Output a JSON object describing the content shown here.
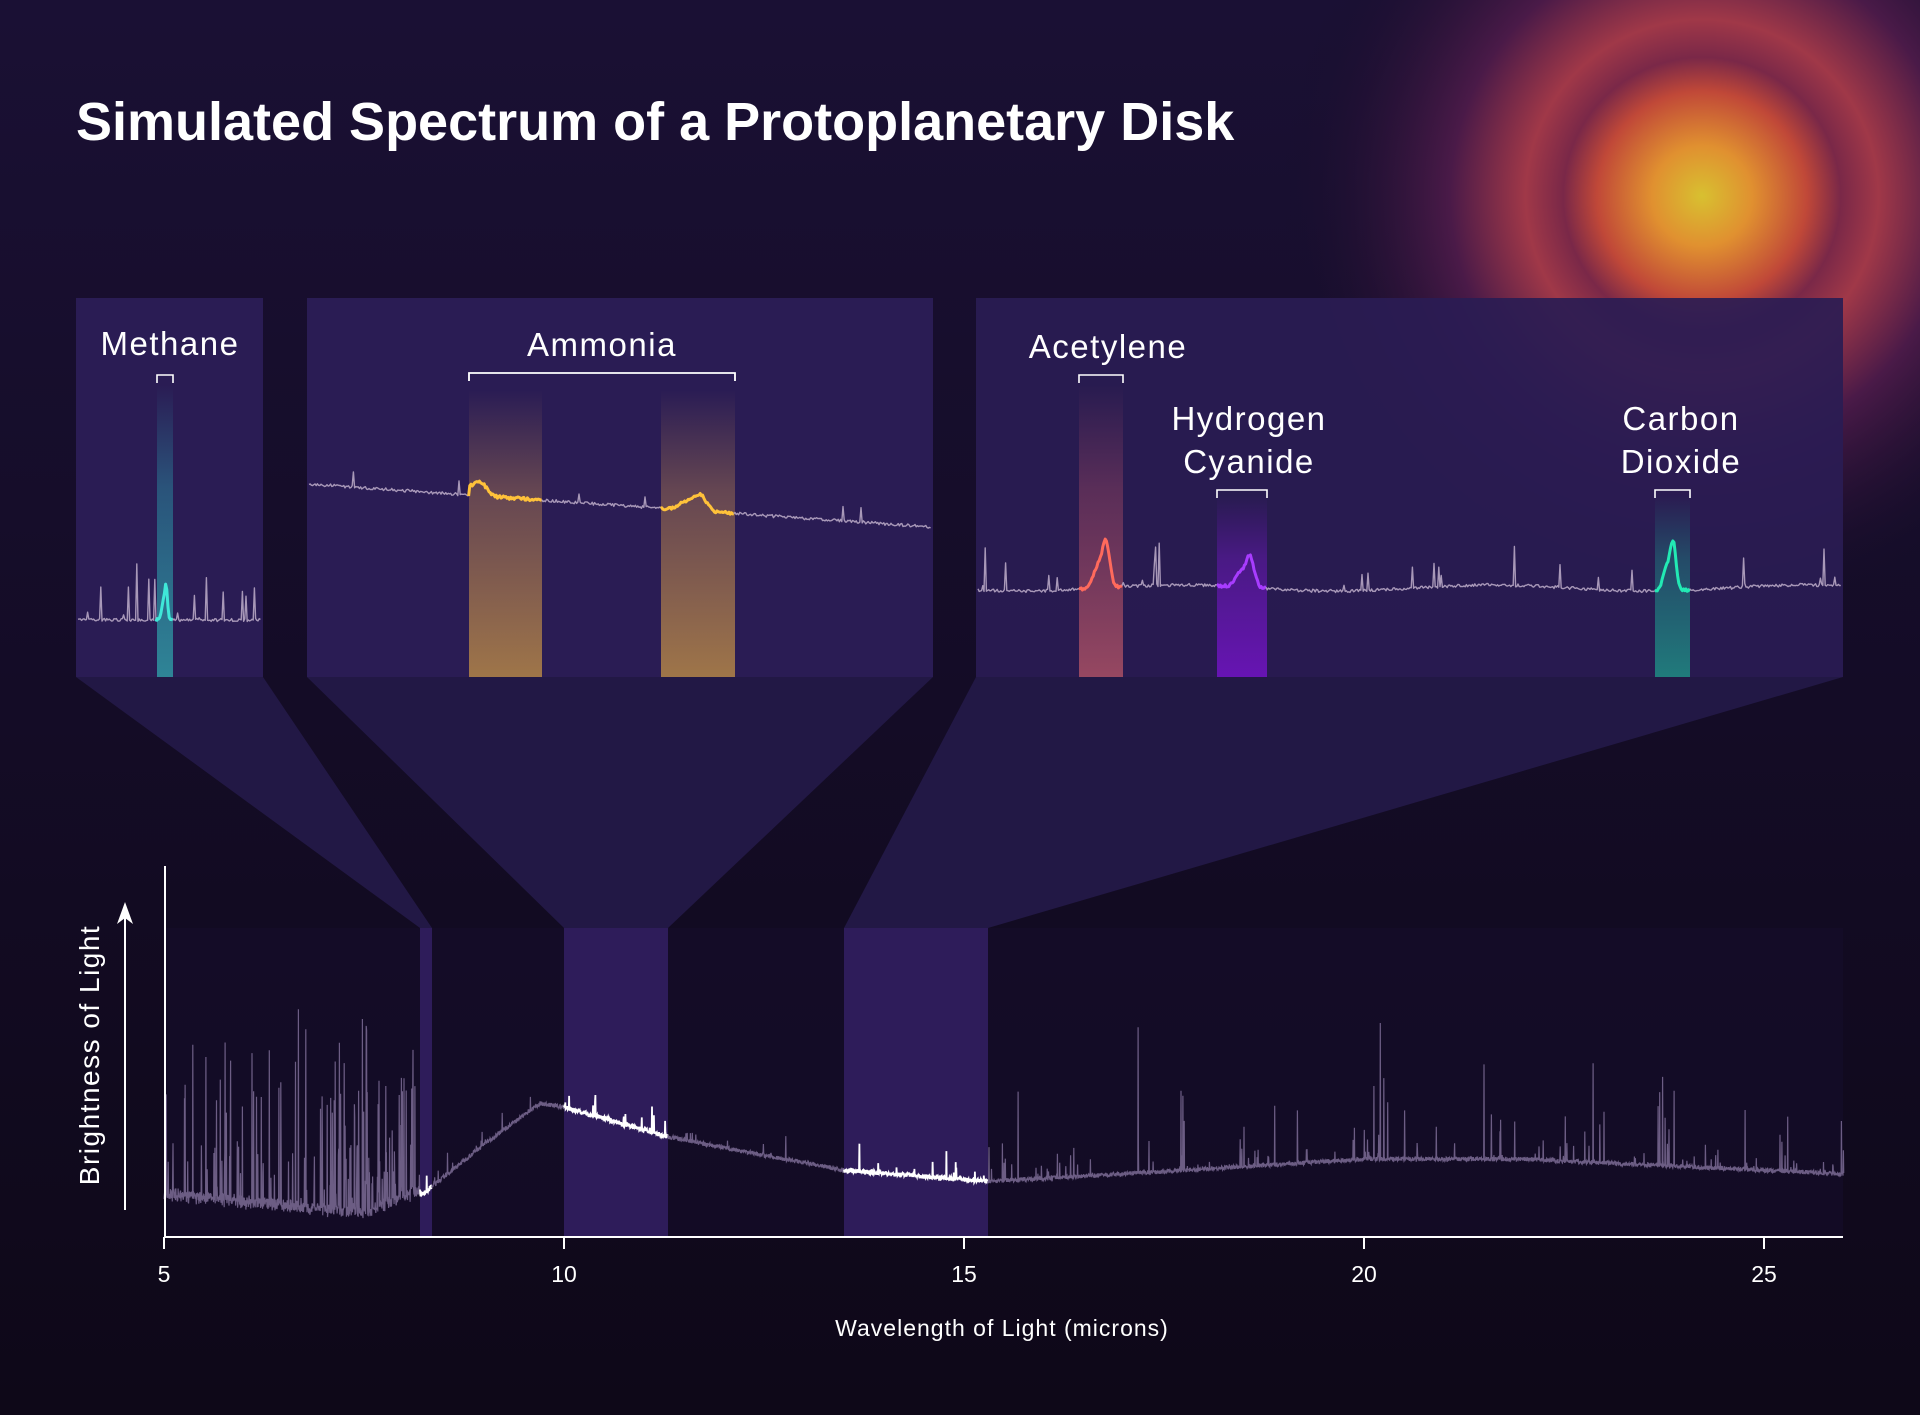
{
  "title": "Simulated Spectrum of a Protoplanetary Disk",
  "chart_data": {
    "type": "line",
    "title": "Simulated Spectrum of a Protoplanetary Disk",
    "xlabel": "Wavelength of Light (microns)",
    "ylabel": "Brightness of Light",
    "xlim": [
      5,
      26
    ],
    "xticks": [
      "5",
      "10",
      "15",
      "20",
      "25"
    ],
    "xtick_values": [
      5,
      10,
      15,
      20,
      25
    ],
    "ylim": [
      0,
      100
    ],
    "y_units": "relative (unlabeled)",
    "grid": false,
    "continuum": {
      "x": [
        5,
        6,
        7,
        7.5,
        8.2,
        9,
        9.7,
        10,
        11.3,
        12.5,
        13.5,
        15.3,
        17,
        20,
        22,
        25,
        26
      ],
      "y": [
        10,
        8,
        6,
        5,
        11,
        25,
        36,
        35,
        27,
        22,
        18,
        15,
        17,
        21,
        21,
        18,
        17
      ]
    },
    "highlighted_ranges": [
      {
        "from": 8.2,
        "to": 8.35
      },
      {
        "from": 10.0,
        "to": 11.3
      },
      {
        "from": 13.5,
        "to": 15.3
      }
    ],
    "insets": [
      {
        "molecules": [
          {
            "name": "Methane",
            "color": "#3fe8d8"
          }
        ]
      },
      {
        "molecules": [
          {
            "name": "Ammonia",
            "color": "#ffc23a"
          }
        ]
      },
      {
        "molecules": [
          {
            "name": "Acetylene",
            "color": "#ff6a5c"
          },
          {
            "name_lines": [
              "Hydrogen",
              "Cyanide"
            ],
            "color": "#a83cff"
          },
          {
            "name_lines": [
              "Carbon",
              "Dioxide"
            ],
            "color": "#22eab4"
          }
        ]
      }
    ],
    "colors": {
      "spectrum": "#6c5d84",
      "highlight_spectrum": "#ffffff",
      "panel": "#2a1c54",
      "background": "#150d2a"
    }
  }
}
